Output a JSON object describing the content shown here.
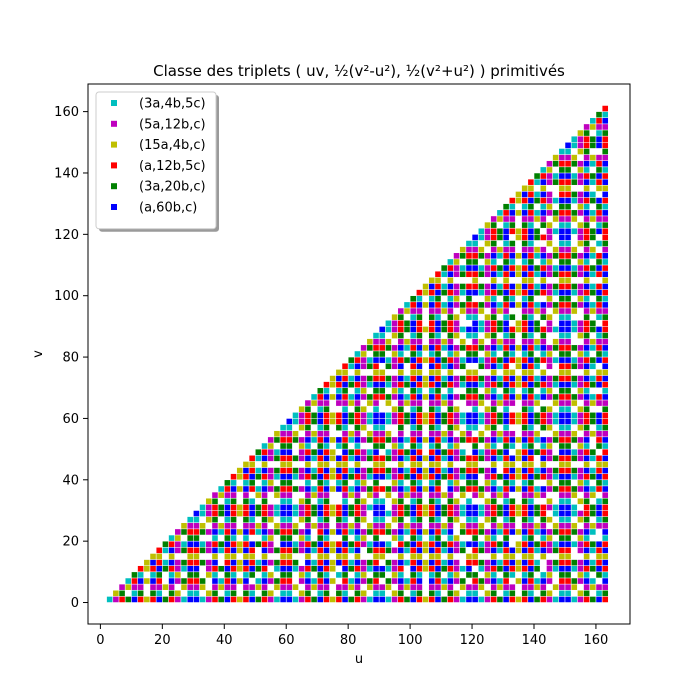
{
  "chart_data": {
    "type": "scatter",
    "title": "Classe des triplets ( uv, ½(v²-u²), ½(v²+u²) ) primitivés",
    "xlabel": "u",
    "ylabel": "v",
    "xlim": [
      -4,
      171
    ],
    "ylim": [
      -7,
      169
    ],
    "xticks": [
      0,
      20,
      40,
      60,
      80,
      100,
      120,
      140,
      160
    ],
    "yticks": [
      0,
      20,
      40,
      60,
      80,
      100,
      120,
      140,
      160
    ],
    "grid": false,
    "legend_position": "top-left",
    "marker": "square",
    "series": [
      {
        "name": "(3a,4b,5c)",
        "color": "#00bfbf"
      },
      {
        "name": "(5a,12b,c)",
        "color": "#bf00bf"
      },
      {
        "name": "(15a,4b,c)",
        "color": "#bfbf00"
      },
      {
        "name": "(a,12b,5c)",
        "color": "#ff0000"
      },
      {
        "name": "(3a,20b,c)",
        "color": "#008000"
      },
      {
        "name": "(a,60b,c)",
        "color": "#0000ff"
      }
    ],
    "point_domain": {
      "u_min": 3,
      "u_max": 163,
      "v_min": 1,
      "v_rule": "v < u, odd u and v, gcd(u,v)=1"
    }
  }
}
